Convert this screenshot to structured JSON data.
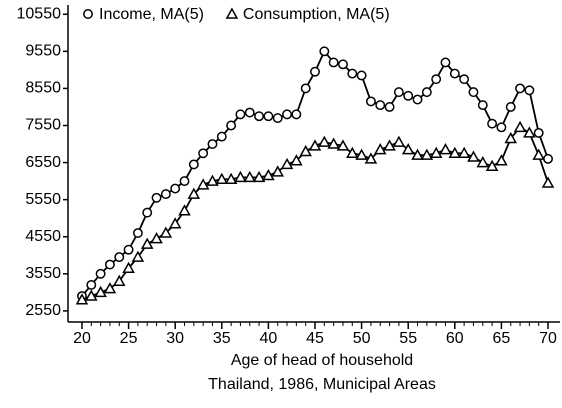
{
  "chart_data": {
    "type": "line",
    "xlabel": "Age of head of household",
    "caption": "Thailand, 1986, Municipal Areas",
    "x": [
      20,
      21,
      22,
      23,
      24,
      25,
      26,
      27,
      28,
      29,
      30,
      31,
      32,
      33,
      34,
      35,
      36,
      37,
      38,
      39,
      40,
      41,
      42,
      43,
      44,
      45,
      46,
      47,
      48,
      49,
      50,
      51,
      52,
      53,
      54,
      55,
      56,
      57,
      58,
      59,
      60,
      61,
      62,
      63,
      64,
      65,
      66,
      67,
      68,
      69,
      70
    ],
    "series": [
      {
        "name": "Income, MA(5)",
        "color": "#000000",
        "marker": "circle",
        "values": [
          2950,
          3250,
          3550,
          3800,
          4000,
          4200,
          4650,
          5200,
          5600,
          5700,
          5850,
          6050,
          6500,
          6800,
          7050,
          7250,
          7550,
          7850,
          7900,
          7800,
          7800,
          7750,
          7850,
          7850,
          8550,
          9000,
          9550,
          9250,
          9200,
          8950,
          8900,
          8200,
          8100,
          8050,
          8450,
          8350,
          8250,
          8450,
          8800,
          9250,
          8950,
          8800,
          8450,
          8100,
          7600,
          7500,
          8050,
          8550,
          8500,
          7350,
          6650
        ]
      },
      {
        "name": "Consumption, MA(5)",
        "color": "#000000",
        "marker": "triangle",
        "values": [
          2850,
          2950,
          3050,
          3150,
          3350,
          3700,
          4000,
          4350,
          4500,
          4650,
          4900,
          5250,
          5700,
          5950,
          6050,
          6100,
          6100,
          6150,
          6150,
          6150,
          6200,
          6300,
          6500,
          6600,
          6850,
          7000,
          7100,
          7050,
          7000,
          6800,
          6750,
          6650,
          6900,
          7000,
          7100,
          6900,
          6750,
          6750,
          6800,
          6900,
          6800,
          6800,
          6700,
          6550,
          6450,
          6600,
          7200,
          7500,
          7350,
          6750,
          6000
        ]
      }
    ],
    "xlim": [
      18.5,
      71.5
    ],
    "xticks": [
      20,
      25,
      30,
      35,
      40,
      45,
      50,
      55,
      60,
      65,
      70
    ],
    "ylim": [
      2250,
      10800
    ],
    "yticks": [
      2550,
      3550,
      4550,
      5550,
      6550,
      7550,
      8550,
      9550,
      10550
    ]
  }
}
